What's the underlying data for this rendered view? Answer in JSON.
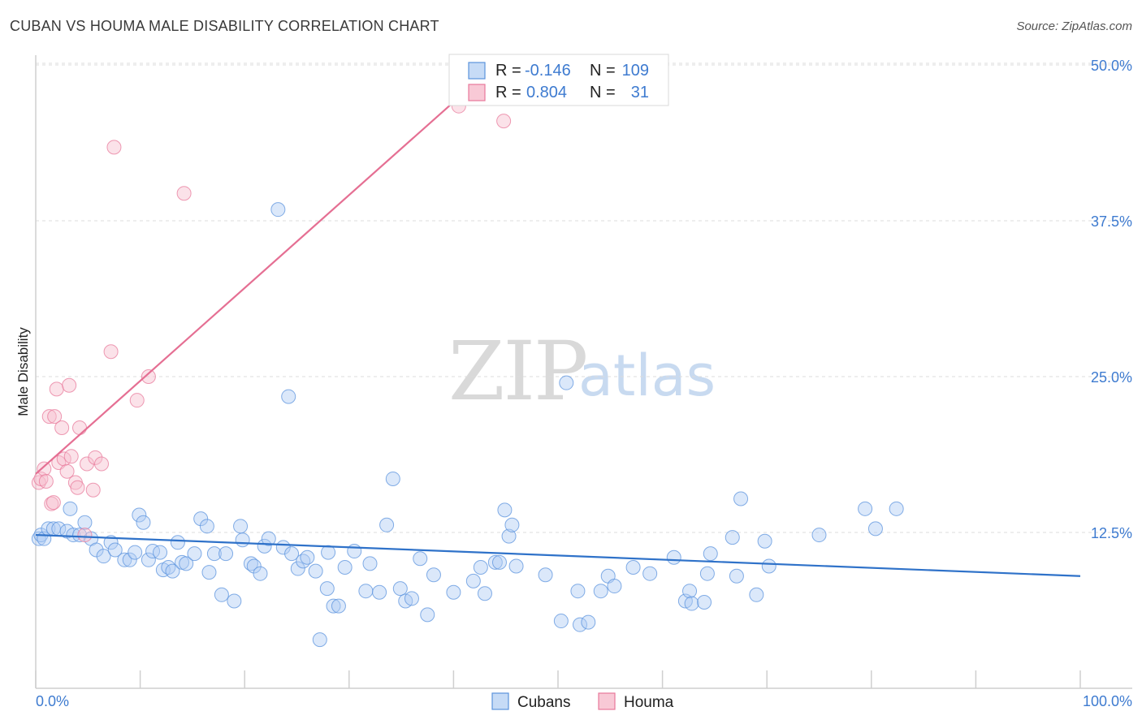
{
  "title": "CUBAN VS HOUMA MALE DISABILITY CORRELATION CHART",
  "source": "Source: ZipAtlas.com",
  "watermark": {
    "zip": "ZIP",
    "atlas": "atlas"
  },
  "colors": {
    "cubans": "#5b93dd",
    "houma": "#e8799b",
    "axis_text": "#3e7bd0"
  },
  "chart_data": {
    "type": "scatter",
    "title": "CUBAN VS HOUMA MALE DISABILITY CORRELATION CHART",
    "xlabel": "",
    "ylabel": "Male Disability",
    "xlim": [
      0,
      100
    ],
    "ylim": [
      0,
      50
    ],
    "x_tick_labels": [
      "0.0%",
      "100.0%"
    ],
    "y_ticks": [
      12.5,
      25.0,
      37.5,
      50.0
    ],
    "y_tick_labels": [
      "12.5%",
      "25.0%",
      "37.5%",
      "50.0%"
    ],
    "grid": "horizontal dashed",
    "legend": {
      "placement": "top-center",
      "rows": [
        {
          "r_label": "R =",
          "r_value": "-0.146",
          "n_label": "N =",
          "n_value": "109"
        },
        {
          "r_label": "R =",
          "r_value": "0.804",
          "n_label": "N =",
          "n_value": "31"
        }
      ]
    },
    "bottom_legend": [
      "Cubans",
      "Houma"
    ],
    "series": [
      {
        "name": "Cubans",
        "color": "#5b93dd",
        "trend": {
          "x": [
            0,
            100
          ],
          "y": [
            12.3,
            9.0
          ]
        },
        "points": [
          [
            0.3,
            12.0
          ],
          [
            0.5,
            12.3
          ],
          [
            0.8,
            12.0
          ],
          [
            1.2,
            12.8
          ],
          [
            1.7,
            12.8
          ],
          [
            2.2,
            12.8
          ],
          [
            3.0,
            12.6
          ],
          [
            3.3,
            14.4
          ],
          [
            3.6,
            12.3
          ],
          [
            4.2,
            12.3
          ],
          [
            4.7,
            13.3
          ],
          [
            5.3,
            12.0
          ],
          [
            5.8,
            11.1
          ],
          [
            6.5,
            10.6
          ],
          [
            7.2,
            11.7
          ],
          [
            7.6,
            11.1
          ],
          [
            8.5,
            10.3
          ],
          [
            9.0,
            10.3
          ],
          [
            9.5,
            10.9
          ],
          [
            9.9,
            13.9
          ],
          [
            10.3,
            13.3
          ],
          [
            10.8,
            10.3
          ],
          [
            11.2,
            11.0
          ],
          [
            11.9,
            10.9
          ],
          [
            12.2,
            9.5
          ],
          [
            12.7,
            9.7
          ],
          [
            13.1,
            9.4
          ],
          [
            13.6,
            11.7
          ],
          [
            14.0,
            10.1
          ],
          [
            14.4,
            10.0
          ],
          [
            15.2,
            10.8
          ],
          [
            15.8,
            13.6
          ],
          [
            16.4,
            13.0
          ],
          [
            16.6,
            9.3
          ],
          [
            17.1,
            10.8
          ],
          [
            17.8,
            7.5
          ],
          [
            18.2,
            10.8
          ],
          [
            19.0,
            7.0
          ],
          [
            19.6,
            13.0
          ],
          [
            19.8,
            11.9
          ],
          [
            20.6,
            10.0
          ],
          [
            20.9,
            9.8
          ],
          [
            21.5,
            9.2
          ],
          [
            21.9,
            11.4
          ],
          [
            22.3,
            12.0
          ],
          [
            23.2,
            38.4
          ],
          [
            23.7,
            11.3
          ],
          [
            24.2,
            23.4
          ],
          [
            24.5,
            10.8
          ],
          [
            25.1,
            9.6
          ],
          [
            25.6,
            10.2
          ],
          [
            26.0,
            10.5
          ],
          [
            26.8,
            9.4
          ],
          [
            27.2,
            3.9
          ],
          [
            27.9,
            8.0
          ],
          [
            28.0,
            10.9
          ],
          [
            28.5,
            6.6
          ],
          [
            29.0,
            6.6
          ],
          [
            29.6,
            9.7
          ],
          [
            30.5,
            11.0
          ],
          [
            31.6,
            7.8
          ],
          [
            32.0,
            10.0
          ],
          [
            32.9,
            7.7
          ],
          [
            33.6,
            13.1
          ],
          [
            34.2,
            16.8
          ],
          [
            34.9,
            8.0
          ],
          [
            35.4,
            7.0
          ],
          [
            36.0,
            7.2
          ],
          [
            36.8,
            10.4
          ],
          [
            37.5,
            5.9
          ],
          [
            38.1,
            9.1
          ],
          [
            40.0,
            7.7
          ],
          [
            41.9,
            8.6
          ],
          [
            42.6,
            9.7
          ],
          [
            43.0,
            7.6
          ],
          [
            44.0,
            10.1
          ],
          [
            44.4,
            10.1
          ],
          [
            44.9,
            14.3
          ],
          [
            45.3,
            12.2
          ],
          [
            45.6,
            13.1
          ],
          [
            46.0,
            9.8
          ],
          [
            48.8,
            9.1
          ],
          [
            50.3,
            5.4
          ],
          [
            50.8,
            24.5
          ],
          [
            51.9,
            7.8
          ],
          [
            52.1,
            5.1
          ],
          [
            52.9,
            5.3
          ],
          [
            54.1,
            7.8
          ],
          [
            54.8,
            9.0
          ],
          [
            55.4,
            8.2
          ],
          [
            57.2,
            9.7
          ],
          [
            58.8,
            9.2
          ],
          [
            61.1,
            10.5
          ],
          [
            62.2,
            7.0
          ],
          [
            62.6,
            7.8
          ],
          [
            62.8,
            6.8
          ],
          [
            64.0,
            6.9
          ],
          [
            64.3,
            9.2
          ],
          [
            64.6,
            10.8
          ],
          [
            66.7,
            12.1
          ],
          [
            67.1,
            9.0
          ],
          [
            67.5,
            15.2
          ],
          [
            69.0,
            7.5
          ],
          [
            69.8,
            11.8
          ],
          [
            70.2,
            9.8
          ],
          [
            75.0,
            12.3
          ],
          [
            79.4,
            14.4
          ],
          [
            80.4,
            12.8
          ],
          [
            82.4,
            14.4
          ]
        ]
      },
      {
        "name": "Houma",
        "color": "#e8799b",
        "trend": {
          "x": [
            0,
            44
          ],
          "y": [
            17.2,
            50.0
          ]
        },
        "points": [
          [
            0.3,
            16.5
          ],
          [
            0.5,
            16.8
          ],
          [
            0.8,
            17.6
          ],
          [
            1.0,
            16.6
          ],
          [
            1.3,
            21.8
          ],
          [
            1.5,
            14.8
          ],
          [
            1.7,
            14.9
          ],
          [
            1.8,
            21.8
          ],
          [
            2.0,
            24.0
          ],
          [
            2.2,
            18.1
          ],
          [
            2.5,
            20.9
          ],
          [
            2.7,
            18.4
          ],
          [
            3.0,
            17.4
          ],
          [
            3.2,
            24.3
          ],
          [
            3.4,
            18.6
          ],
          [
            3.8,
            16.5
          ],
          [
            4.0,
            16.1
          ],
          [
            4.2,
            20.9
          ],
          [
            4.7,
            12.3
          ],
          [
            4.9,
            18.0
          ],
          [
            5.5,
            15.9
          ],
          [
            5.7,
            18.5
          ],
          [
            6.3,
            18.0
          ],
          [
            7.2,
            27.0
          ],
          [
            7.5,
            43.4
          ],
          [
            9.7,
            23.1
          ],
          [
            10.8,
            25.0
          ],
          [
            14.2,
            39.7
          ],
          [
            40.5,
            46.7
          ],
          [
            44.2,
            49.5
          ],
          [
            44.8,
            45.5
          ]
        ]
      }
    ]
  }
}
